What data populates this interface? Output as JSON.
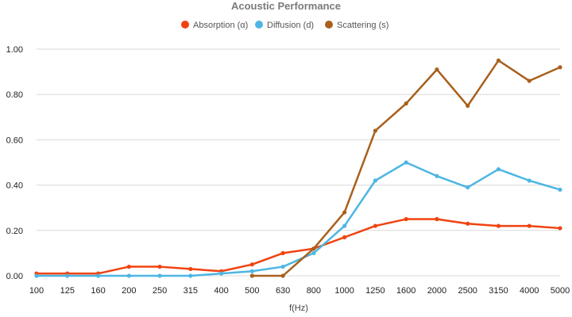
{
  "chart_data": {
    "type": "line",
    "title": "Acoustic Performance",
    "xlabel": "f(Hz)",
    "ylabel": "",
    "categories": [
      "100",
      "125",
      "160",
      "200",
      "250",
      "315",
      "400",
      "500",
      "630",
      "800",
      "1000",
      "1250",
      "1600",
      "2000",
      "2500",
      "3150",
      "4000",
      "5000"
    ],
    "ylim": [
      0,
      1.0
    ],
    "yticks": [
      "0.00",
      "0.20",
      "0.40",
      "0.60",
      "0.80",
      "1.00"
    ],
    "grid": "horizontal",
    "legend_position": "top",
    "series": [
      {
        "name": "Absorption (α)",
        "color": "#f0420f",
        "values": [
          0.01,
          0.01,
          0.01,
          0.04,
          0.04,
          0.03,
          0.02,
          0.05,
          0.1,
          0.12,
          0.17,
          0.22,
          0.25,
          0.25,
          0.23,
          0.22,
          0.22,
          0.21
        ]
      },
      {
        "name": "Diffusion (d)",
        "color": "#4db6e3",
        "values": [
          0.0,
          0.0,
          0.0,
          0.0,
          0.0,
          0.0,
          0.01,
          0.02,
          0.04,
          0.1,
          0.22,
          0.42,
          0.5,
          0.44,
          0.39,
          0.47,
          0.42,
          0.38
        ]
      },
      {
        "name": "Scattering (s)",
        "color": "#a8601c",
        "values": [
          null,
          null,
          null,
          null,
          null,
          null,
          null,
          0.0,
          0.0,
          0.12,
          0.28,
          0.64,
          0.76,
          0.91,
          0.75,
          0.95,
          0.86,
          0.92
        ]
      }
    ]
  }
}
